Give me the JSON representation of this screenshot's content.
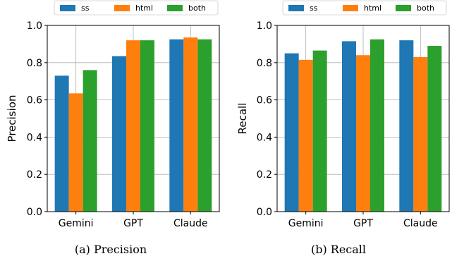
{
  "colors": {
    "ss": "#1f77b4",
    "html": "#ff7f0e",
    "both": "#2ca02c",
    "grid": "#b0b0b0"
  },
  "legend": {
    "placement": "top-center",
    "entries": [
      "ss",
      "html",
      "both"
    ]
  },
  "chart_data": [
    {
      "type": "bar",
      "categories": [
        "Gemini",
        "GPT",
        "Claude"
      ],
      "series": [
        {
          "name": "ss",
          "values": [
            0.73,
            0.835,
            0.925
          ]
        },
        {
          "name": "html",
          "values": [
            0.635,
            0.92,
            0.935
          ]
        },
        {
          "name": "both",
          "values": [
            0.76,
            0.92,
            0.925
          ]
        }
      ],
      "ylabel": "Precision",
      "ylim": [
        0.0,
        1.0
      ],
      "yticks": [
        "0.0",
        "0.2",
        "0.4",
        "0.6",
        "0.8",
        "1.0"
      ],
      "grid": true,
      "caption": "(a) Precision"
    },
    {
      "type": "bar",
      "categories": [
        "Gemini",
        "GPT",
        "Claude"
      ],
      "series": [
        {
          "name": "ss",
          "values": [
            0.85,
            0.915,
            0.92
          ]
        },
        {
          "name": "html",
          "values": [
            0.815,
            0.84,
            0.83
          ]
        },
        {
          "name": "both",
          "values": [
            0.865,
            0.925,
            0.89
          ]
        }
      ],
      "ylabel": "Recall",
      "ylim": [
        0.0,
        1.0
      ],
      "yticks": [
        "0.0",
        "0.2",
        "0.4",
        "0.6",
        "0.8",
        "1.0"
      ],
      "grid": true,
      "caption": "(b) Recall"
    }
  ]
}
